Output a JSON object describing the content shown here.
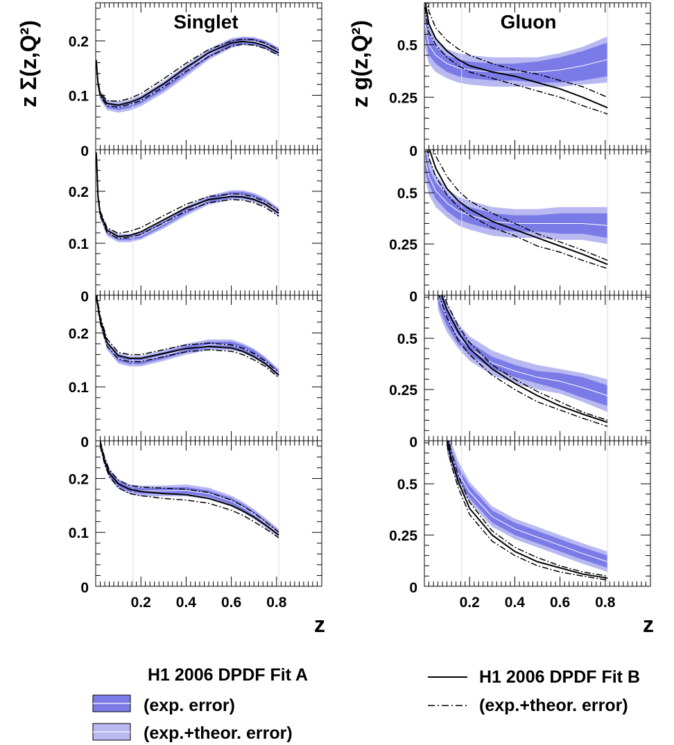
{
  "colors": {
    "exp_band": "#7b7be8",
    "total_band": "#b9b9f2",
    "central": "#ffffff",
    "fit_b": "#000000",
    "axis": "#000000"
  },
  "legend": {
    "fit_a_title": "H1 2006 DPDF Fit A",
    "fit_a_exp": "(exp. error)",
    "fit_a_tot": "(exp.+theor. error)",
    "fit_b_title": "H1 2006 DPDF Fit B",
    "fit_b_err": "(exp.+theor. error)"
  },
  "chart_data": [
    {
      "type": "line",
      "column": "Singlet",
      "title": "Singlet",
      "ylabel": "z Σ(z,Q²)",
      "xlabel": "z",
      "xlim": [
        0,
        1
      ],
      "rows": [
        {
          "ylim": [
            0,
            0.27
          ],
          "yticks": [
            "0",
            "0.1",
            "0.2"
          ],
          "ytick_values": [
            0,
            0.1,
            0.2
          ],
          "x": [
            0.003,
            0.01,
            0.02,
            0.05,
            0.1,
            0.15,
            0.2,
            0.3,
            0.4,
            0.5,
            0.6,
            0.65,
            0.7,
            0.75,
            0.81
          ],
          "fitA": [
            0.16,
            0.12,
            0.1,
            0.082,
            0.078,
            0.082,
            0.09,
            0.115,
            0.145,
            0.175,
            0.196,
            0.2,
            0.199,
            0.193,
            0.18
          ],
          "fitA_exp": [
            0.004,
            0.004,
            0.004,
            0.005,
            0.005,
            0.005,
            0.005,
            0.006,
            0.006,
            0.006,
            0.006,
            0.006,
            0.006,
            0.006,
            0.006
          ],
          "fitA_tot": [
            0.008,
            0.008,
            0.008,
            0.009,
            0.01,
            0.01,
            0.01,
            0.011,
            0.011,
            0.01,
            0.009,
            0.008,
            0.008,
            0.008,
            0.008
          ],
          "fitB": [
            0.16,
            0.122,
            0.102,
            0.085,
            0.082,
            0.087,
            0.095,
            0.121,
            0.151,
            0.178,
            0.196,
            0.199,
            0.197,
            0.191,
            0.178
          ],
          "fitB_lo": [
            0.155,
            0.118,
            0.098,
            0.081,
            0.078,
            0.083,
            0.09,
            0.115,
            0.144,
            0.171,
            0.19,
            0.194,
            0.192,
            0.186,
            0.173
          ],
          "fitB_hi": [
            0.165,
            0.126,
            0.106,
            0.09,
            0.089,
            0.094,
            0.103,
            0.13,
            0.159,
            0.184,
            0.2,
            0.203,
            0.202,
            0.196,
            0.183
          ]
        },
        {
          "ylim": [
            0,
            0.28
          ],
          "yticks": [
            "0",
            "0.1",
            "0.2"
          ],
          "ytick_values": [
            0,
            0.1,
            0.2
          ],
          "x": [
            0.003,
            0.01,
            0.02,
            0.05,
            0.1,
            0.15,
            0.2,
            0.3,
            0.4,
            0.5,
            0.6,
            0.65,
            0.7,
            0.75,
            0.81
          ],
          "fitA": [
            0.27,
            0.19,
            0.155,
            0.122,
            0.11,
            0.11,
            0.115,
            0.137,
            0.162,
            0.183,
            0.193,
            0.193,
            0.188,
            0.179,
            0.16
          ],
          "fitA_exp": [
            0.004,
            0.004,
            0.004,
            0.004,
            0.004,
            0.004,
            0.005,
            0.005,
            0.005,
            0.005,
            0.006,
            0.006,
            0.006,
            0.005,
            0.005
          ],
          "fitA_tot": [
            0.008,
            0.008,
            0.008,
            0.008,
            0.008,
            0.008,
            0.008,
            0.009,
            0.009,
            0.009,
            0.009,
            0.009,
            0.009,
            0.008,
            0.008
          ],
          "fitB": [
            0.27,
            0.19,
            0.157,
            0.125,
            0.113,
            0.115,
            0.122,
            0.145,
            0.168,
            0.184,
            0.19,
            0.189,
            0.184,
            0.175,
            0.158
          ],
          "fitB_lo": [
            0.265,
            0.186,
            0.153,
            0.121,
            0.109,
            0.111,
            0.117,
            0.139,
            0.162,
            0.178,
            0.184,
            0.183,
            0.178,
            0.169,
            0.152
          ],
          "fitB_hi": [
            0.275,
            0.195,
            0.162,
            0.13,
            0.119,
            0.123,
            0.13,
            0.153,
            0.175,
            0.19,
            0.195,
            0.194,
            0.189,
            0.18,
            0.163
          ]
        },
        {
          "ylim": [
            0,
            0.27
          ],
          "yticks": [
            "0",
            "0.1",
            "0.2"
          ],
          "ytick_values": [
            0,
            0.1,
            0.2
          ],
          "x": [
            0.003,
            0.01,
            0.02,
            0.05,
            0.1,
            0.15,
            0.2,
            0.3,
            0.4,
            0.5,
            0.6,
            0.65,
            0.7,
            0.75,
            0.81
          ],
          "fitA": [
            0.27,
            0.25,
            0.222,
            0.178,
            0.153,
            0.148,
            0.148,
            0.158,
            0.17,
            0.178,
            0.178,
            0.172,
            0.162,
            0.148,
            0.125
          ],
          "fitA_exp": [
            0.005,
            0.005,
            0.005,
            0.005,
            0.005,
            0.006,
            0.006,
            0.006,
            0.006,
            0.006,
            0.006,
            0.006,
            0.006,
            0.005,
            0.005
          ],
          "fitA_tot": [
            0.009,
            0.009,
            0.009,
            0.009,
            0.01,
            0.01,
            0.01,
            0.01,
            0.01,
            0.01,
            0.01,
            0.009,
            0.009,
            0.008,
            0.008
          ],
          "fitB": [
            0.27,
            0.25,
            0.225,
            0.182,
            0.158,
            0.153,
            0.153,
            0.162,
            0.171,
            0.175,
            0.172,
            0.166,
            0.156,
            0.143,
            0.122
          ],
          "fitB_lo": [
            0.264,
            0.244,
            0.219,
            0.176,
            0.152,
            0.147,
            0.147,
            0.156,
            0.165,
            0.169,
            0.166,
            0.16,
            0.15,
            0.138,
            0.117
          ],
          "fitB_hi": [
            0.277,
            0.256,
            0.231,
            0.189,
            0.164,
            0.16,
            0.16,
            0.169,
            0.178,
            0.181,
            0.178,
            0.172,
            0.162,
            0.148,
            0.127
          ]
        },
        {
          "ylim": [
            0,
            0.27
          ],
          "yticks": [
            "0",
            "0.1",
            "0.2"
          ],
          "ytick_values": [
            0,
            0.1,
            0.2
          ],
          "x": [
            0.02,
            0.04,
            0.06,
            0.1,
            0.15,
            0.2,
            0.3,
            0.4,
            0.5,
            0.6,
            0.65,
            0.7,
            0.75,
            0.81
          ],
          "fitA": [
            0.265,
            0.232,
            0.21,
            0.19,
            0.18,
            0.177,
            0.177,
            0.178,
            0.172,
            0.158,
            0.147,
            0.134,
            0.118,
            0.098
          ],
          "fitA_exp": [
            0.005,
            0.005,
            0.005,
            0.005,
            0.005,
            0.005,
            0.006,
            0.006,
            0.006,
            0.006,
            0.006,
            0.005,
            0.005,
            0.005
          ],
          "fitA_tot": [
            0.009,
            0.009,
            0.009,
            0.009,
            0.009,
            0.01,
            0.01,
            0.011,
            0.011,
            0.01,
            0.01,
            0.009,
            0.009,
            0.008
          ],
          "fitB": [
            0.265,
            0.232,
            0.21,
            0.19,
            0.18,
            0.176,
            0.172,
            0.17,
            0.163,
            0.15,
            0.14,
            0.128,
            0.114,
            0.095
          ],
          "fitB_lo": [
            0.26,
            0.226,
            0.204,
            0.183,
            0.172,
            0.168,
            0.163,
            0.16,
            0.154,
            0.141,
            0.132,
            0.12,
            0.107,
            0.09
          ],
          "fitB_hi": [
            0.27,
            0.238,
            0.216,
            0.197,
            0.187,
            0.184,
            0.182,
            0.18,
            0.174,
            0.16,
            0.149,
            0.136,
            0.12,
            0.1
          ]
        }
      ],
      "xticks": [
        "0.2",
        "0.4",
        "0.6",
        "0.8"
      ],
      "xtick_values": [
        0.2,
        0.4,
        0.6,
        0.8
      ]
    },
    {
      "type": "line",
      "column": "Gluon",
      "title": "Gluon",
      "ylabel": "z g(z,Q²)",
      "xlabel": "z",
      "xlim": [
        0,
        1
      ],
      "rows": [
        {
          "ylim": [
            0,
            0.7
          ],
          "yticks": [
            "0",
            "0.25",
            "0.5"
          ],
          "ytick_values": [
            0,
            0.25,
            0.5
          ],
          "x": [
            0.003,
            0.01,
            0.02,
            0.05,
            0.1,
            0.15,
            0.2,
            0.3,
            0.4,
            0.5,
            0.6,
            0.7,
            0.81
          ],
          "fitA": [
            0.6,
            0.55,
            0.5,
            0.45,
            0.41,
            0.39,
            0.38,
            0.37,
            0.37,
            0.37,
            0.38,
            0.4,
            0.43
          ],
          "fitA_exp": [
            0.06,
            0.05,
            0.05,
            0.04,
            0.04,
            0.04,
            0.04,
            0.04,
            0.04,
            0.05,
            0.06,
            0.07,
            0.08
          ],
          "fitA_tot": [
            0.11,
            0.1,
            0.09,
            0.08,
            0.07,
            0.07,
            0.07,
            0.07,
            0.07,
            0.07,
            0.08,
            0.09,
            0.11
          ],
          "fitB": [
            0.72,
            0.66,
            0.6,
            0.53,
            0.47,
            0.43,
            0.4,
            0.37,
            0.35,
            0.32,
            0.29,
            0.25,
            0.2
          ],
          "fitB_lo": [
            0.68,
            0.62,
            0.56,
            0.5,
            0.44,
            0.4,
            0.37,
            0.34,
            0.31,
            0.28,
            0.25,
            0.21,
            0.17
          ],
          "fitB_hi": [
            0.78,
            0.72,
            0.66,
            0.58,
            0.52,
            0.48,
            0.45,
            0.41,
            0.38,
            0.36,
            0.33,
            0.3,
            0.25
          ]
        },
        {
          "ylim": [
            0,
            0.71
          ],
          "yticks": [
            "0",
            "0.25",
            "0.5"
          ],
          "ytick_values": [
            0,
            0.25,
            0.5
          ],
          "x": [
            0.003,
            0.01,
            0.02,
            0.05,
            0.1,
            0.15,
            0.2,
            0.3,
            0.4,
            0.5,
            0.6,
            0.7,
            0.81
          ],
          "fitA": [
            0.66,
            0.63,
            0.58,
            0.51,
            0.45,
            0.41,
            0.39,
            0.36,
            0.35,
            0.35,
            0.35,
            0.35,
            0.34
          ],
          "fitA_exp": [
            0.05,
            0.05,
            0.04,
            0.04,
            0.04,
            0.04,
            0.04,
            0.04,
            0.04,
            0.04,
            0.05,
            0.05,
            0.06
          ],
          "fitA_tot": [
            0.1,
            0.09,
            0.09,
            0.08,
            0.07,
            0.07,
            0.07,
            0.07,
            0.07,
            0.07,
            0.08,
            0.08,
            0.09
          ],
          "fitB": [
            0.82,
            0.77,
            0.72,
            0.62,
            0.52,
            0.46,
            0.42,
            0.36,
            0.32,
            0.28,
            0.24,
            0.2,
            0.15
          ],
          "fitB_lo": [
            0.78,
            0.72,
            0.67,
            0.58,
            0.49,
            0.43,
            0.39,
            0.33,
            0.29,
            0.24,
            0.21,
            0.17,
            0.13
          ],
          "fitB_hi": [
            0.9,
            0.84,
            0.78,
            0.68,
            0.58,
            0.51,
            0.46,
            0.4,
            0.35,
            0.3,
            0.26,
            0.22,
            0.17
          ]
        },
        {
          "ylim": [
            0,
            0.71
          ],
          "yticks": [
            "0",
            "0.25",
            "0.5"
          ],
          "ytick_values": [
            0,
            0.25,
            0.5
          ],
          "x": [
            0.06,
            0.08,
            0.1,
            0.15,
            0.2,
            0.3,
            0.4,
            0.5,
            0.6,
            0.7,
            0.81
          ],
          "fitA": [
            0.71,
            0.65,
            0.6,
            0.51,
            0.45,
            0.38,
            0.34,
            0.31,
            0.29,
            0.26,
            0.22
          ],
          "fitA_exp": [
            0.04,
            0.04,
            0.04,
            0.04,
            0.03,
            0.03,
            0.03,
            0.03,
            0.04,
            0.05,
            0.05
          ],
          "fitA_tot": [
            0.07,
            0.07,
            0.07,
            0.06,
            0.06,
            0.06,
            0.06,
            0.06,
            0.06,
            0.07,
            0.08
          ],
          "fitB": [
            0.76,
            0.7,
            0.64,
            0.53,
            0.45,
            0.35,
            0.28,
            0.22,
            0.17,
            0.13,
            0.09
          ],
          "fitB_lo": [
            0.72,
            0.66,
            0.6,
            0.49,
            0.42,
            0.32,
            0.25,
            0.19,
            0.15,
            0.11,
            0.07
          ],
          "fitB_hi": [
            0.8,
            0.73,
            0.67,
            0.56,
            0.48,
            0.37,
            0.3,
            0.24,
            0.19,
            0.14,
            0.1
          ]
        },
        {
          "ylim": [
            0,
            0.71
          ],
          "yticks": [
            "0",
            "0.25",
            "0.5"
          ],
          "ytick_values": [
            0,
            0.25,
            0.5
          ],
          "x": [
            0.1,
            0.12,
            0.15,
            0.2,
            0.3,
            0.4,
            0.5,
            0.6,
            0.7,
            0.81
          ],
          "fitA": [
            0.71,
            0.64,
            0.55,
            0.46,
            0.34,
            0.28,
            0.24,
            0.2,
            0.16,
            0.12
          ],
          "fitA_exp": [
            0.04,
            0.03,
            0.03,
            0.03,
            0.03,
            0.03,
            0.03,
            0.03,
            0.03,
            0.03
          ],
          "fitA_tot": [
            0.06,
            0.06,
            0.06,
            0.05,
            0.05,
            0.05,
            0.05,
            0.05,
            0.05,
            0.05
          ],
          "fitB": [
            0.72,
            0.62,
            0.51,
            0.38,
            0.25,
            0.17,
            0.12,
            0.09,
            0.06,
            0.04
          ],
          "fitB_lo": [
            0.69,
            0.59,
            0.48,
            0.35,
            0.22,
            0.15,
            0.1,
            0.07,
            0.05,
            0.03
          ],
          "fitB_hi": [
            0.75,
            0.65,
            0.54,
            0.41,
            0.27,
            0.19,
            0.14,
            0.1,
            0.07,
            0.05
          ]
        }
      ],
      "xticks": [
        "0.2",
        "0.4",
        "0.6",
        "0.8"
      ],
      "xtick_values": [
        0.2,
        0.4,
        0.6,
        0.8
      ]
    }
  ]
}
